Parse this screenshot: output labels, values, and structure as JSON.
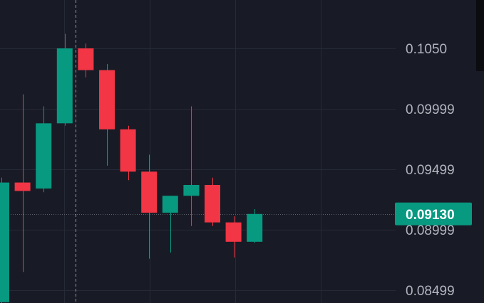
{
  "colors": {
    "background": "#181b25",
    "grid": "#262a36",
    "up": "#089981",
    "down": "#f23645",
    "axis_text": "#b2b5be",
    "crosshair": "#9598a1",
    "current_price_line": "#5d606b",
    "scrollbar": "#0b0c10"
  },
  "chart_data": {
    "type": "candlestick",
    "y_axis_position": "right",
    "grid": true,
    "ylim": [
      0.0838,
      0.1062
    ],
    "y_ticks": [
      "0.1050",
      "0.09999",
      "0.09499",
      "0.08999",
      "0.08499"
    ],
    "y_tick_values": [
      0.105,
      0.09999,
      0.09499,
      0.08999,
      0.08499
    ],
    "current_price": 0.0913,
    "current_price_label": "0.09130",
    "crosshair_after_candle": 4,
    "candles": [
      {
        "open": 0.084,
        "high": 0.0943,
        "low": 0.0838,
        "close": 0.0939
      },
      {
        "open": 0.0939,
        "high": 0.1012,
        "low": 0.0865,
        "close": 0.0932
      },
      {
        "open": 0.0934,
        "high": 0.1002,
        "low": 0.0931,
        "close": 0.0988
      },
      {
        "open": 0.0988,
        "high": 0.1062,
        "low": 0.0986,
        "close": 0.105
      },
      {
        "open": 0.105,
        "high": 0.1054,
        "low": 0.1026,
        "close": 0.1032
      },
      {
        "open": 0.1032,
        "high": 0.1037,
        "low": 0.0953,
        "close": 0.0983
      },
      {
        "open": 0.0983,
        "high": 0.0986,
        "low": 0.0941,
        "close": 0.0948
      },
      {
        "open": 0.0948,
        "high": 0.0962,
        "low": 0.0876,
        "close": 0.0914
      },
      {
        "open": 0.0914,
        "high": 0.0928,
        "low": 0.0881,
        "close": 0.0928
      },
      {
        "open": 0.0928,
        "high": 0.1002,
        "low": 0.0903,
        "close": 0.0937
      },
      {
        "open": 0.0937,
        "high": 0.0943,
        "low": 0.0903,
        "close": 0.0906
      },
      {
        "open": 0.0906,
        "high": 0.0911,
        "low": 0.0877,
        "close": 0.089
      },
      {
        "open": 0.089,
        "high": 0.0917,
        "low": 0.0889,
        "close": 0.0913
      }
    ]
  }
}
